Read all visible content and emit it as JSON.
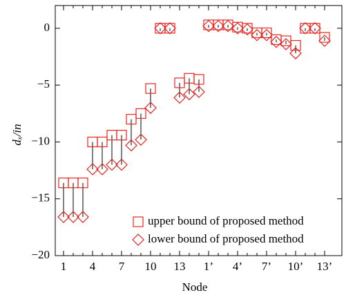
{
  "chart_data": {
    "type": "range-scatter",
    "x_label": "Node",
    "y_label": "dₓ/in",
    "categories": [
      "1",
      null,
      null,
      "4",
      null,
      null,
      "7",
      null,
      null,
      "10",
      null,
      null,
      "13",
      null,
      null,
      "1’",
      null,
      null,
      "4’",
      null,
      null,
      "7’",
      null,
      null,
      "10’",
      null,
      null,
      "13’"
    ],
    "series": [
      {
        "name": "upper bound of proposed method",
        "color": "#e8231f",
        "marker": "square",
        "values": [
          -13.6,
          -13.6,
          -13.6,
          -10,
          -10,
          -9.4,
          -9.4,
          -8,
          -7.5,
          -5.3,
          0,
          0,
          -4.8,
          -4.4,
          -4.5,
          0.3,
          0.3,
          0.3,
          0.1,
          0,
          -0.4,
          -0.4,
          -1,
          -1.1,
          -1.5,
          0,
          0,
          -0.8
        ]
      },
      {
        "name": "lower bound of proposed method",
        "color": "#e8231f",
        "marker": "diamond",
        "values": [
          -16.6,
          -16.6,
          -16.6,
          -12.4,
          -12.4,
          -12,
          -12,
          -10.3,
          -9.8,
          -7,
          0,
          0,
          -6.1,
          -5.8,
          -5.6,
          0.2,
          0.2,
          0.2,
          0,
          -0.1,
          -0.6,
          -0.6,
          -1.2,
          -1.4,
          -2.2,
          0,
          0,
          -1.1
        ]
      }
    ],
    "ylim": [
      -20,
      2
    ],
    "yticks": [
      {
        "value": -20,
        "label": "−20"
      },
      {
        "value": -15,
        "label": "−15"
      },
      {
        "value": -10,
        "label": "−10"
      },
      {
        "value": -5,
        "label": "−5"
      },
      0
    ],
    "legend": "lower-right"
  }
}
